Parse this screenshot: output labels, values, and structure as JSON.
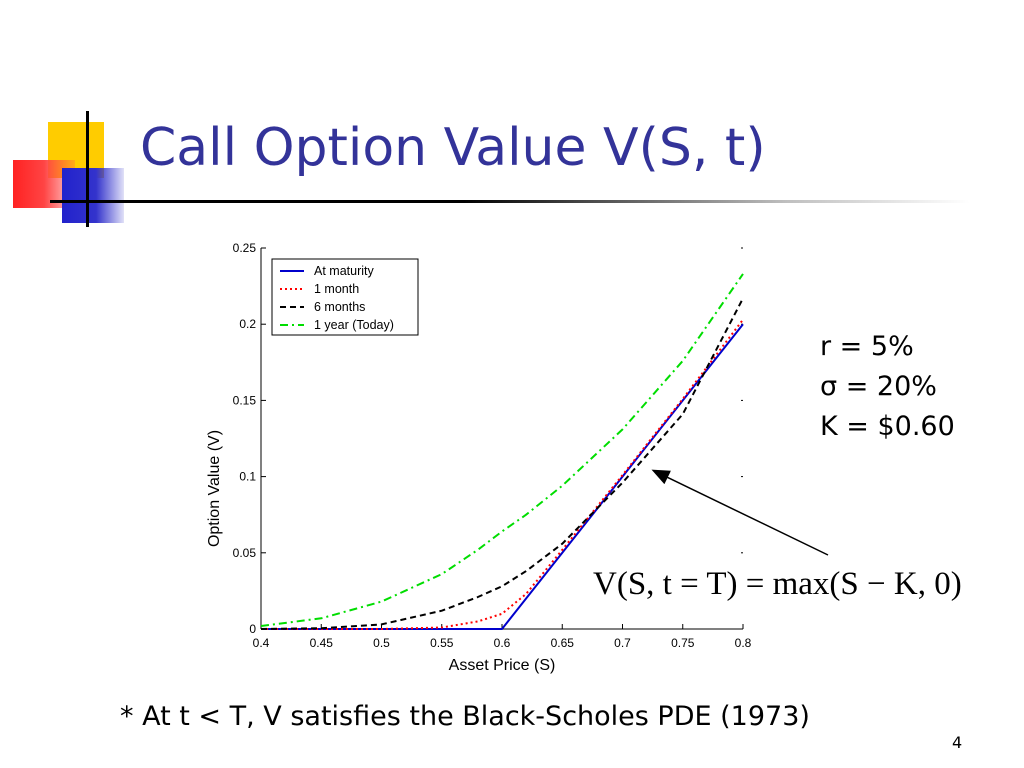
{
  "slide": {
    "title": "Call Option Value V(S, t)",
    "footnote": "* At t < T, V satisfies the Black-Scholes PDE (1973)",
    "page_number": "4"
  },
  "parameters": {
    "r": "r = 5%",
    "sigma": "σ = 20%",
    "K": "K = $0.60"
  },
  "formula": {
    "text": "V(S, t = T) = max(S − K, 0)"
  },
  "colors": {
    "title": "#333399",
    "at_maturity": "#0000cc",
    "one_month": "#ff0000",
    "six_months": "#000000",
    "one_year": "#00dd00",
    "deco_yellow": "#ffcc00",
    "deco_red": "#ff3333",
    "deco_blue": "#3333cc"
  },
  "chart_data": {
    "type": "line",
    "title": "",
    "xlabel": "Asset Price (S)",
    "ylabel": "Option Value (V)",
    "xlim": [
      0.4,
      0.8
    ],
    "ylim": [
      0,
      0.25
    ],
    "xticks": [
      "0.4",
      "0.45",
      "0.5",
      "0.55",
      "0.6",
      "0.65",
      "0.7",
      "0.75",
      "0.8"
    ],
    "yticks": [
      "0",
      "0.05",
      "0.1",
      "0.15",
      "0.2",
      "0.25"
    ],
    "legend_position": "top-left",
    "grid": false,
    "x": [
      0.4,
      0.45,
      0.5,
      0.55,
      0.58,
      0.6,
      0.62,
      0.65,
      0.7,
      0.75,
      0.8
    ],
    "series": [
      {
        "name": "At maturity",
        "style": "solid",
        "color": "#0000cc",
        "values": [
          0,
          0,
          0,
          0,
          0,
          0,
          0.02,
          0.05,
          0.1,
          0.15,
          0.2
        ]
      },
      {
        "name": "1 month",
        "style": "dotted",
        "color": "#ff0000",
        "values": [
          0,
          0,
          0,
          0.001,
          0.005,
          0.01,
          0.023,
          0.052,
          0.101,
          0.151,
          0.203
        ]
      },
      {
        "name": "6 months",
        "style": "dashed",
        "color": "#000000",
        "values": [
          0,
          0.0005,
          0.003,
          0.012,
          0.021,
          0.028,
          0.038,
          0.056,
          0.096,
          0.141,
          0.217
        ]
      },
      {
        "name": "1 year (Today)",
        "style": "dashdot",
        "color": "#00dd00",
        "values": [
          0.002,
          0.007,
          0.018,
          0.036,
          0.052,
          0.064,
          0.075,
          0.094,
          0.131,
          0.176,
          0.233
        ]
      }
    ],
    "annotation": {
      "arrow_from": "formula",
      "arrow_to_point": [
        0.723,
        0.105
      ]
    }
  }
}
